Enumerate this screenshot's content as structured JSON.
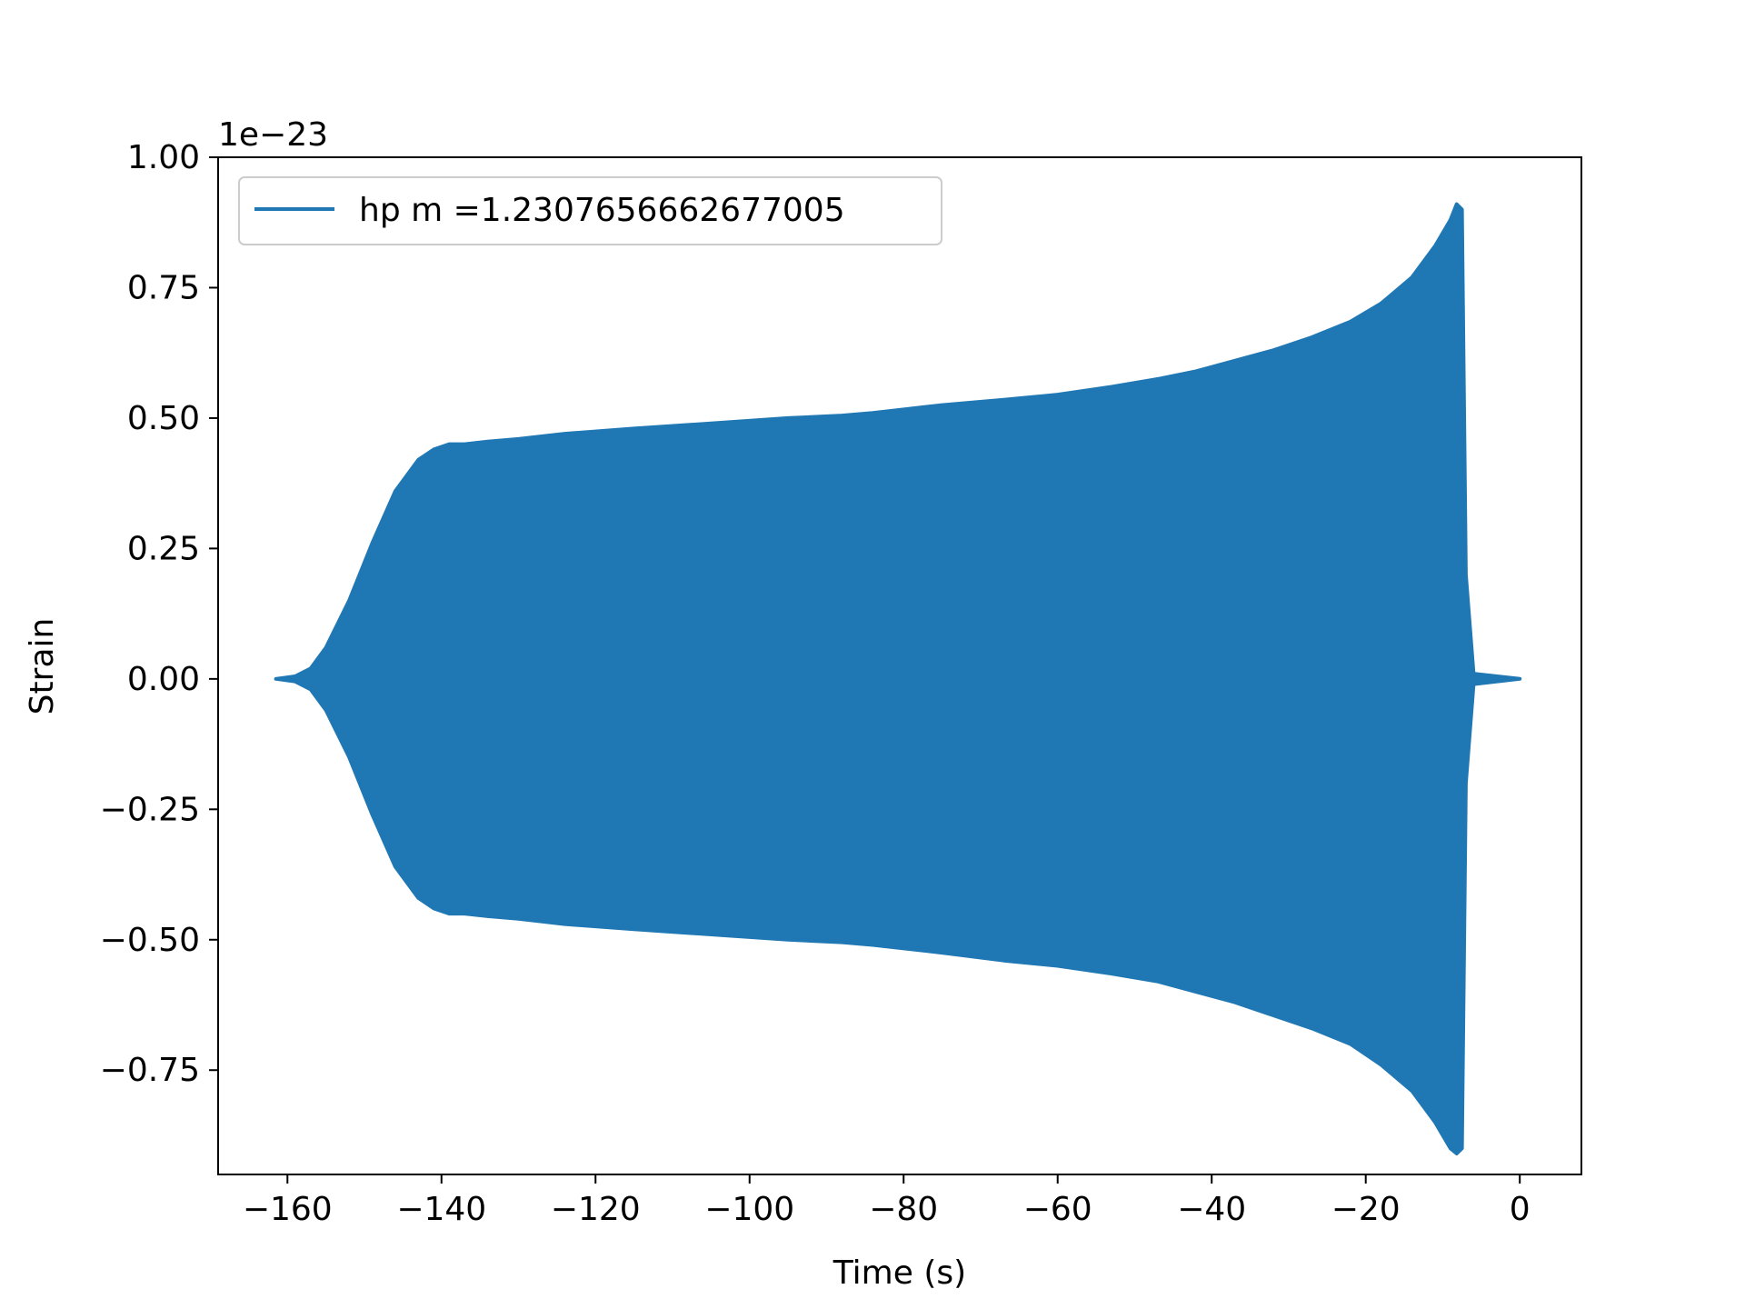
{
  "chart_data": {
    "type": "area",
    "xlabel": "Time (s)",
    "ylabel": "Strain",
    "offset_text": "1e−23",
    "xlim": [
      -169,
      8
    ],
    "ylim": [
      -0.95,
      1.0
    ],
    "x_ticks": [
      -160,
      -140,
      -120,
      -100,
      -80,
      -60,
      -40,
      -20,
      0
    ],
    "x_tick_labels": [
      "−160",
      "−140",
      "−120",
      "−100",
      "−80",
      "−60",
      "−40",
      "−20",
      "0"
    ],
    "y_ticks": [
      -0.75,
      -0.5,
      -0.25,
      0.0,
      0.25,
      0.5,
      0.75,
      1.0
    ],
    "y_tick_labels": [
      "−0.75",
      "−0.50",
      "−0.25",
      "0.00",
      "0.25",
      "0.50",
      "0.75",
      "1.00"
    ],
    "grid": false,
    "legend_position": "top-left",
    "series": [
      {
        "name": "hp m =1.2307656662677005",
        "color": "#1f77b4",
        "envelope": {
          "t": [
            -161.5,
            -159,
            -157,
            -155,
            -152,
            -149,
            -146,
            -143,
            -141,
            -139,
            -137,
            -134,
            -130,
            -124,
            -115,
            -105,
            -95,
            -88,
            -84,
            -81,
            -75,
            -67,
            -60,
            -53,
            -47,
            -42,
            -37,
            -32,
            -27,
            -22,
            -18,
            -14,
            -11,
            -9,
            -8.2,
            -7.5,
            -7,
            -6,
            0
          ],
          "upper": [
            0.0,
            0.005,
            0.02,
            0.06,
            0.15,
            0.26,
            0.36,
            0.42,
            0.44,
            0.45,
            0.45,
            0.455,
            0.46,
            0.47,
            0.48,
            0.49,
            0.5,
            0.505,
            0.51,
            0.515,
            0.525,
            0.535,
            0.545,
            0.56,
            0.575,
            0.59,
            0.61,
            0.63,
            0.655,
            0.685,
            0.72,
            0.77,
            0.83,
            0.88,
            0.91,
            0.9,
            0.2,
            0.01,
            0.0
          ],
          "lower": [
            0.0,
            -0.005,
            -0.02,
            -0.06,
            -0.15,
            -0.26,
            -0.36,
            -0.42,
            -0.44,
            -0.45,
            -0.45,
            -0.455,
            -0.46,
            -0.47,
            -0.48,
            -0.49,
            -0.5,
            -0.505,
            -0.51,
            -0.515,
            -0.525,
            -0.54,
            -0.55,
            -0.565,
            -0.58,
            -0.6,
            -0.62,
            -0.645,
            -0.67,
            -0.7,
            -0.74,
            -0.79,
            -0.85,
            -0.9,
            -0.91,
            -0.9,
            -0.2,
            -0.01,
            0.0
          ]
        }
      }
    ]
  }
}
